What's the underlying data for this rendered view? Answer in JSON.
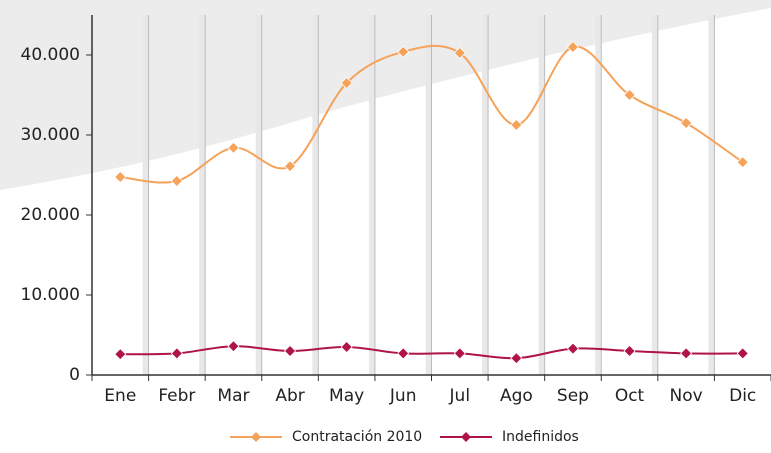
{
  "chart_data": {
    "type": "line",
    "categories": [
      "Ene",
      "Febr",
      "Mar",
      "Abr",
      "May",
      "Jun",
      "Jul",
      "Ago",
      "Sep",
      "Oct",
      "Nov",
      "Dic"
    ],
    "series": [
      {
        "name": "Contratación 2010",
        "color": "#f5a25a",
        "values": [
          24750,
          24250,
          28400,
          26100,
          36500,
          40400,
          40250,
          31250,
          41000,
          35000,
          31500,
          26600
        ]
      },
      {
        "name": "Indefinidos",
        "color": "#b0124a",
        "values": [
          2600,
          2700,
          3600,
          3000,
          3500,
          2700,
          2700,
          2100,
          3300,
          3000,
          2700,
          2700
        ]
      }
    ],
    "ylim": [
      0,
      45000
    ],
    "yticks": [
      0,
      {
        "value": 10000,
        "label": "10.000"
      },
      {
        "value": 20000,
        "label": "20.000"
      },
      {
        "value": 30000,
        "label": "30.000"
      },
      {
        "value": 40000,
        "label": "40.000"
      }
    ],
    "legend": "bottom"
  }
}
